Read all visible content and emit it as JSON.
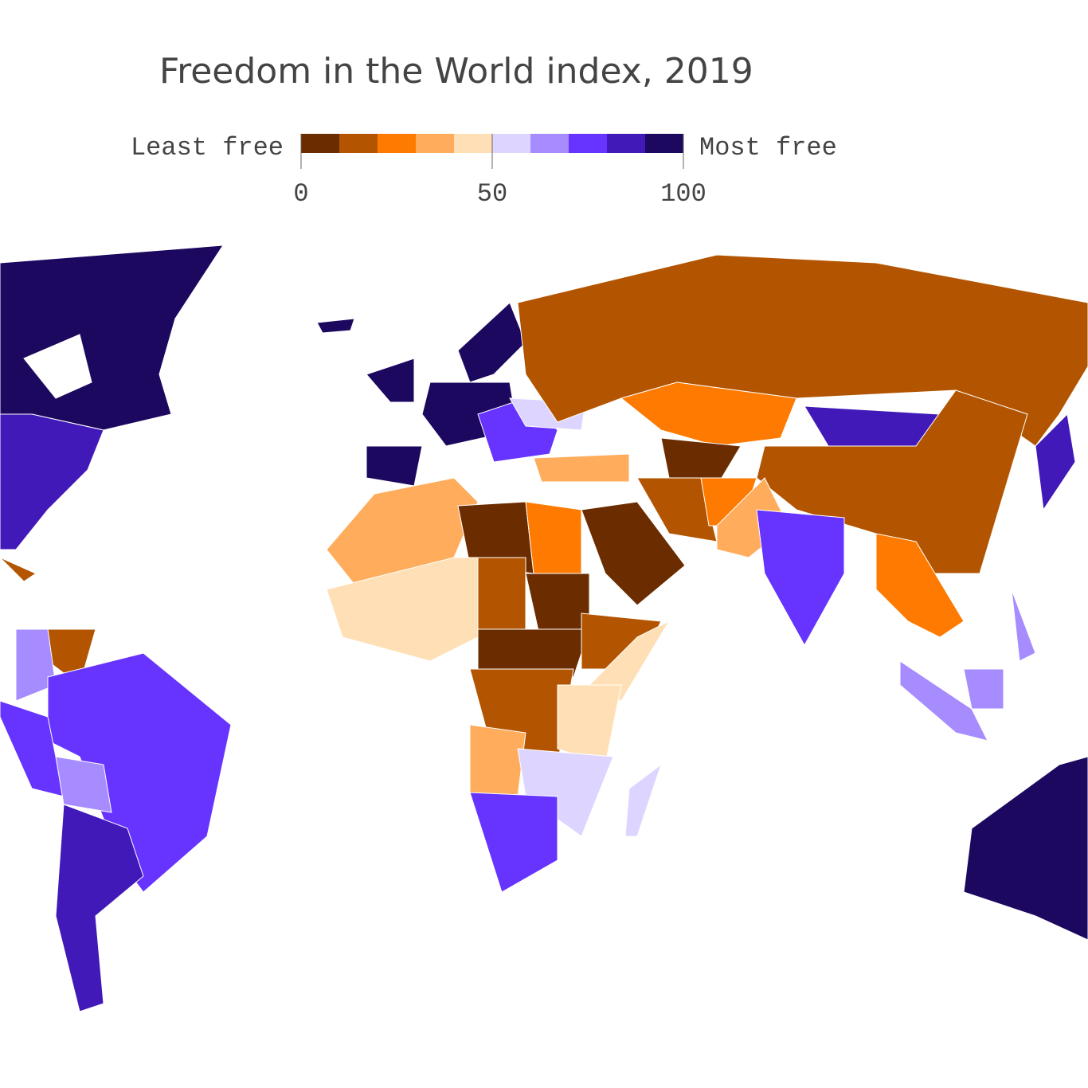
{
  "title": "Freedom in the World index, 2019",
  "legend": {
    "low_label": "Least free",
    "high_label": "Most free",
    "range": [
      0,
      100
    ],
    "ticks": [
      0,
      50,
      100
    ],
    "colors": [
      "#6b2c00",
      "#b35500",
      "#ff7a00",
      "#ffad5c",
      "#ffdfb5",
      "#ddd5ff",
      "#a68cff",
      "#6633ff",
      "#4119b8",
      "#1d0860"
    ]
  }
}
